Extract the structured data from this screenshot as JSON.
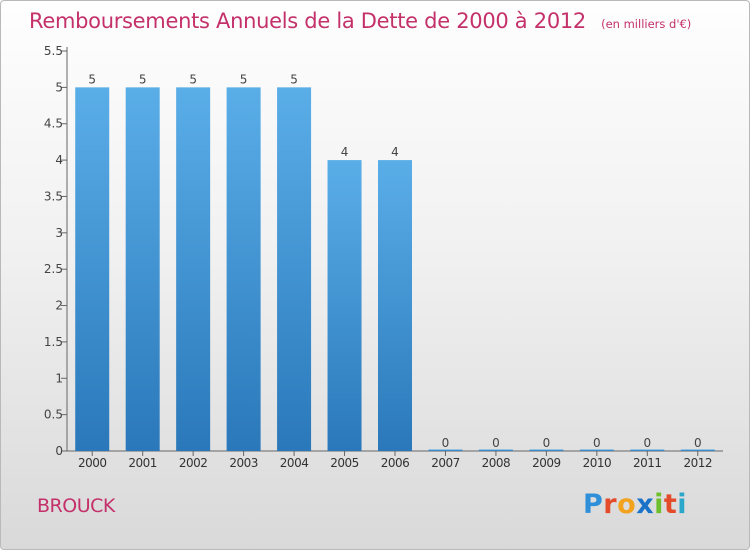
{
  "title": "Remboursements Annuels de la Dette de 2000 à 2012",
  "unit": "(en milliers d'€)",
  "commune": "BROUCK",
  "logo": {
    "letters": [
      "P",
      "r",
      "o",
      "x",
      "i",
      "t",
      "i"
    ],
    "colors": [
      "#2f8fd8",
      "#e34b2a",
      "#f2a21c",
      "#1a73c9",
      "#6fbf2c",
      "#e34b2a",
      "#2aa7c9"
    ]
  },
  "chart_data": {
    "type": "bar",
    "categories": [
      "2000",
      "2001",
      "2002",
      "2003",
      "2004",
      "2005",
      "2006",
      "2007",
      "2008",
      "2009",
      "2010",
      "2011",
      "2012"
    ],
    "values": [
      5,
      5,
      5,
      5,
      5,
      4,
      4,
      0,
      0,
      0,
      0,
      0,
      0
    ],
    "data_labels": [
      "5",
      "5",
      "5",
      "5",
      "5",
      "4",
      "4",
      "0",
      "0",
      "0",
      "0",
      "0",
      "0"
    ],
    "ylim": [
      0,
      5.5
    ],
    "yticks": [
      0,
      0.5,
      1,
      1.5,
      2,
      2.5,
      3,
      3.5,
      4,
      4.5,
      5,
      5.5
    ],
    "ytick_labels": [
      "0",
      "0.5",
      "1",
      "1.5",
      "2",
      "2.5",
      "3",
      "3.5",
      "4",
      "4.5",
      "5",
      "5.5"
    ],
    "grid": false,
    "bar_color_light": "#5aaee8",
    "bar_color_dark": "#2a78ba"
  }
}
